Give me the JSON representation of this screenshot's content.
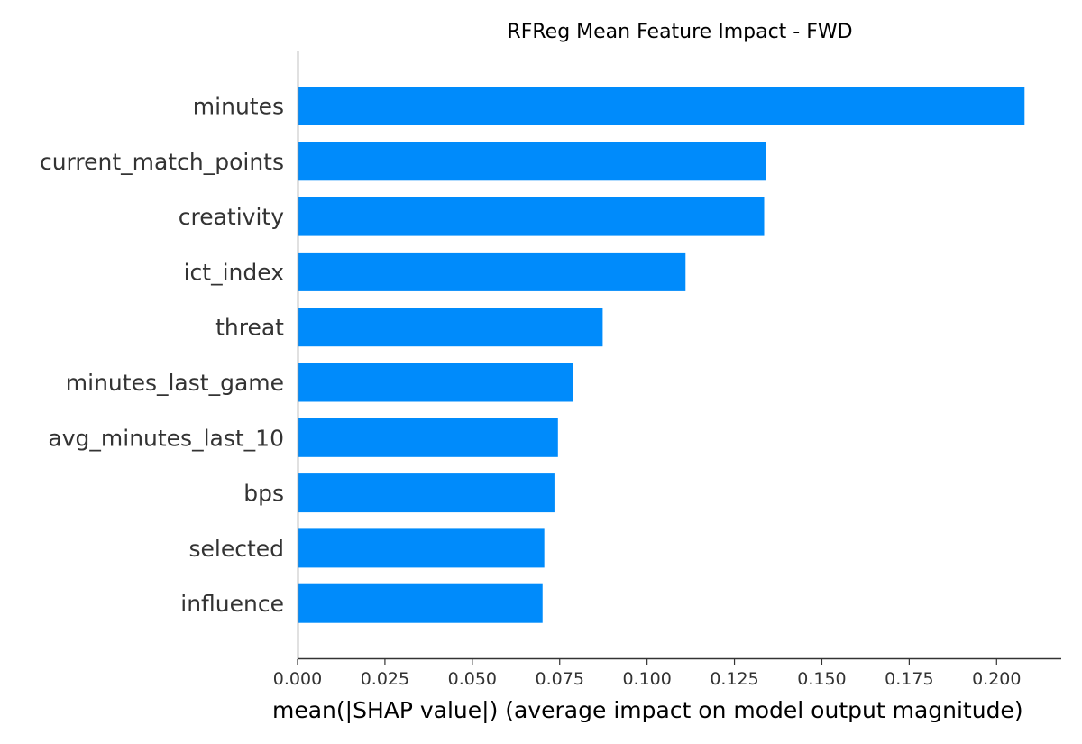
{
  "chart_data": {
    "type": "bar",
    "orientation": "horizontal",
    "title": "RFReg Mean Feature Impact - FWD",
    "xlabel": "mean(|SHAP value|) (average impact on model output magnitude)",
    "ylabel": "",
    "categories": [
      "minutes",
      "current_match_points",
      "creativity",
      "ict_index",
      "threat",
      "minutes_last_game",
      "avg_minutes_last_10",
      "bps",
      "selected",
      "influence"
    ],
    "values": [
      0.208,
      0.134,
      0.1335,
      0.111,
      0.0873,
      0.0788,
      0.0745,
      0.0735,
      0.0706,
      0.0701
    ],
    "xlim": [
      0,
      0.2185
    ],
    "xticks": [
      "0.000",
      "0.025",
      "0.050",
      "0.075",
      "0.100",
      "0.125",
      "0.150",
      "0.175",
      "0.200"
    ],
    "bar_color": "#008bfb",
    "grid": false,
    "legend": "none"
  }
}
